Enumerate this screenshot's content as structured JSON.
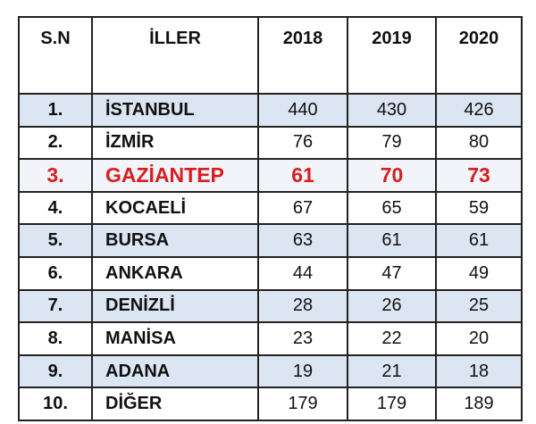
{
  "table": {
    "header": [
      "S.N",
      "İLLER",
      "2018",
      "2019",
      "2020"
    ],
    "rows": [
      [
        "1.",
        "İSTANBUL",
        440,
        430,
        426
      ],
      [
        "2.",
        "İZMİR",
        76,
        79,
        80
      ],
      [
        "3.",
        "GAZİANTEP",
        61,
        70,
        73
      ],
      [
        "4.",
        "KOCAELİ",
        67,
        65,
        59
      ],
      [
        "5.",
        "BURSA",
        63,
        61,
        61
      ],
      [
        "6.",
        "ANKARA",
        44,
        47,
        49
      ],
      [
        "7.",
        "DENİZLİ",
        28,
        26,
        25
      ],
      [
        "8.",
        "MANİSA",
        23,
        22,
        20
      ],
      [
        "9.",
        "ADANA",
        19,
        21,
        18
      ],
      [
        "10.",
        "DİĞER",
        179,
        179,
        189
      ]
    ]
  }
}
